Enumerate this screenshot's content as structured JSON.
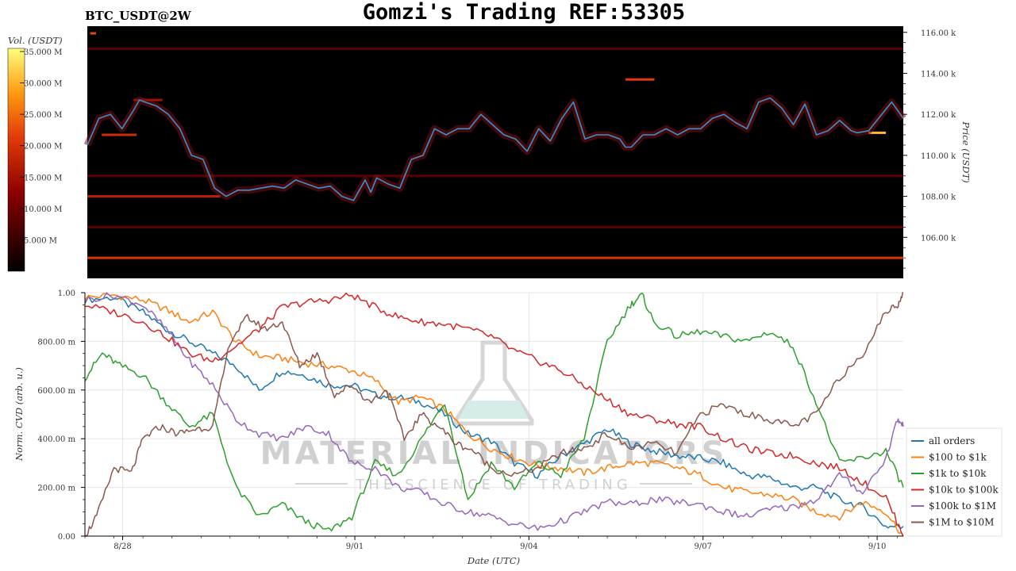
{
  "header": {
    "symbol": "BTC_USDT@2W",
    "title": "Gomzi's Trading REF:53305"
  },
  "watermark": {
    "line1": "MATERIAL INDICATORS",
    "line2": "THE SCIENCE OF TRADING"
  },
  "colors": {
    "heatmap_bg": "#000000",
    "price_line": "#3a8fd0",
    "grid": "#e6e6e6"
  },
  "chart_data": [
    {
      "type": "heatmap",
      "title": "",
      "ylabel": "Price (USDT)",
      "ylim": [
        104000,
        116300
      ],
      "y_ticks": [
        "106.00 k",
        "108.00 k",
        "110.00 k",
        "112.00 k",
        "114.00 k",
        "116.00 k"
      ],
      "y_tick_values": [
        106000,
        108000,
        110000,
        112000,
        114000,
        116000
      ],
      "colorbar": {
        "label": "Vol. (USDT)",
        "ticks": [
          "5.000 M",
          "10.000 M",
          "15.000 M",
          "20.000 M",
          "25.000 M",
          "30.000 M",
          "35.000 M"
        ],
        "tick_values": [
          5,
          10,
          15,
          20,
          25,
          30,
          35
        ],
        "range": [
          0,
          35.5
        ]
      },
      "x_range_days": [
        0,
        14.1
      ],
      "walls": [
        {
          "price": 105000,
          "x0": 0,
          "x1": 14.1,
          "vol": 20
        },
        {
          "price": 108000,
          "x0": 0,
          "x1": 2.3,
          "vol": 17
        },
        {
          "price": 111000,
          "x0": 0.25,
          "x1": 0.85,
          "vol": 19
        },
        {
          "price": 113700,
          "x0": 9.3,
          "x1": 9.8,
          "vol": 21
        },
        {
          "price": 111100,
          "x0": 13.5,
          "x1": 13.8,
          "vol": 30
        },
        {
          "price": 115950,
          "x0": 0.05,
          "x1": 0.15,
          "vol": 22
        },
        {
          "price": 109000,
          "x0": 0,
          "x1": 14.1,
          "vol": 8
        },
        {
          "price": 106500,
          "x0": 0,
          "x1": 14.1,
          "vol": 8
        },
        {
          "price": 115200,
          "x0": 0,
          "x1": 14.1,
          "vol": 8
        },
        {
          "price": 112700,
          "x0": 0.8,
          "x1": 1.3,
          "vol": 15
        }
      ],
      "series": [
        {
          "x": [
            0,
            0.2,
            0.4,
            0.6,
            0.8,
            0.9,
            1.0,
            1.2,
            1.4,
            1.6,
            1.8,
            2.0,
            2.2,
            2.4,
            2.6,
            2.8,
            3.0,
            3.2,
            3.4,
            3.6,
            3.8,
            4.0,
            4.2,
            4.4,
            4.6,
            4.8,
            4.9,
            5.0,
            5.2,
            5.4,
            5.6,
            5.8,
            6.0,
            6.2,
            6.4,
            6.6,
            6.8,
            7.0,
            7.2,
            7.4,
            7.6,
            7.8,
            8.0,
            8.2,
            8.4,
            8.6,
            8.8,
            9.0,
            9.2,
            9.3,
            9.4,
            9.6,
            9.8,
            10.0,
            10.2,
            10.4,
            10.6,
            10.8,
            11.0,
            11.2,
            11.4,
            11.6,
            11.8,
            12.0,
            12.2,
            12.4,
            12.6,
            12.8,
            13.0,
            13.2,
            13.3,
            13.5,
            13.7,
            13.9,
            14.0,
            14.1
          ],
          "values": [
            110500,
            111800,
            112000,
            111300,
            112200,
            112700,
            112600,
            112400,
            112000,
            111300,
            110000,
            109800,
            108400,
            108000,
            108300,
            108300,
            108400,
            108500,
            108400,
            108800,
            108600,
            108400,
            108500,
            108000,
            107800,
            108800,
            108200,
            108900,
            108600,
            108400,
            109800,
            110000,
            111300,
            111000,
            111300,
            111300,
            112000,
            111500,
            111000,
            110800,
            110200,
            111300,
            110700,
            111800,
            112600,
            110800,
            111000,
            111000,
            110800,
            110400,
            110400,
            111000,
            111000,
            111300,
            111000,
            111300,
            111300,
            111800,
            112000,
            111600,
            111300,
            112600,
            112800,
            112300,
            111500,
            112500,
            111000,
            111200,
            111700,
            111200,
            111100,
            111200,
            111900,
            112600,
            112200,
            111800
          ]
        }
      ]
    },
    {
      "type": "line",
      "title": "",
      "xlabel": "Date (UTC)",
      "ylabel": "Norm. CVD (arb. u.)",
      "ylim": [
        0,
        1
      ],
      "y_ticks": [
        "0.00",
        "200.00 m",
        "400.00 m",
        "600.00 m",
        "800.00 m",
        "1.00"
      ],
      "y_tick_values": [
        0,
        0.2,
        0.4,
        0.6,
        0.8,
        1.0
      ],
      "x_ticks": [
        "8/28",
        "9/01",
        "9/04",
        "9/07",
        "9/10"
      ],
      "x_tick_values": [
        0.65,
        4.65,
        7.65,
        10.65,
        13.65
      ],
      "x_range_days": [
        0,
        14.1
      ],
      "legend_position": "lower-right",
      "series": [
        {
          "name": "all orders",
          "color": "#1f77b4",
          "x": [
            0,
            0.5,
            1.0,
            1.4,
            1.8,
            2.2,
            2.6,
            3.0,
            3.4,
            3.8,
            4.2,
            4.6,
            5.0,
            5.4,
            5.8,
            6.2,
            6.6,
            7.0,
            7.4,
            7.8,
            8.2,
            8.6,
            9.0,
            9.4,
            9.8,
            10.2,
            10.6,
            11.0,
            11.4,
            11.8,
            12.2,
            12.6,
            13.0,
            13.4,
            13.8,
            14.1
          ],
          "values": [
            0.97,
            0.98,
            0.92,
            0.85,
            0.8,
            0.75,
            0.7,
            0.6,
            0.68,
            0.66,
            0.62,
            0.62,
            0.58,
            0.57,
            0.55,
            0.5,
            0.42,
            0.39,
            0.3,
            0.25,
            0.33,
            0.38,
            0.44,
            0.38,
            0.35,
            0.33,
            0.32,
            0.3,
            0.25,
            0.24,
            0.2,
            0.2,
            0.15,
            0.12,
            0.04,
            0.04
          ]
        },
        {
          "name": "$100 to $1k",
          "color": "#ff7f0e",
          "x": [
            0,
            0.5,
            1.0,
            1.4,
            1.8,
            2.2,
            2.6,
            3.0,
            3.4,
            3.8,
            4.2,
            4.6,
            5.0,
            5.4,
            5.8,
            6.2,
            6.6,
            7.0,
            7.4,
            7.8,
            8.2,
            8.6,
            9.0,
            9.4,
            9.8,
            10.2,
            10.6,
            11.0,
            11.4,
            11.8,
            12.2,
            12.6,
            13.0,
            13.4,
            13.8,
            14.1
          ],
          "values": [
            0.98,
            0.99,
            0.97,
            0.93,
            0.88,
            0.92,
            0.8,
            0.74,
            0.73,
            0.71,
            0.7,
            0.68,
            0.64,
            0.55,
            0.57,
            0.52,
            0.42,
            0.36,
            0.32,
            0.29,
            0.28,
            0.26,
            0.28,
            0.3,
            0.3,
            0.28,
            0.25,
            0.2,
            0.18,
            0.17,
            0.15,
            0.1,
            0.08,
            0.14,
            0.1,
            0.0
          ]
        },
        {
          "name": "$1k to $10k",
          "color": "#2ca02c",
          "x": [
            0,
            0.3,
            0.6,
            1.0,
            1.4,
            1.8,
            2.2,
            2.6,
            3.0,
            3.4,
            3.8,
            4.2,
            4.6,
            5.0,
            5.4,
            5.8,
            6.2,
            6.6,
            7.0,
            7.4,
            7.8,
            8.2,
            8.6,
            9.0,
            9.4,
            9.6,
            9.8,
            10.2,
            10.6,
            11.0,
            11.4,
            11.8,
            12.2,
            12.6,
            13.0,
            13.4,
            13.8,
            14.1
          ],
          "values": [
            0.65,
            0.75,
            0.7,
            0.66,
            0.55,
            0.45,
            0.5,
            0.2,
            0.08,
            0.13,
            0.06,
            0.02,
            0.08,
            0.3,
            0.25,
            0.4,
            0.55,
            0.15,
            0.3,
            0.2,
            0.3,
            0.25,
            0.4,
            0.8,
            0.95,
            0.99,
            0.88,
            0.82,
            0.84,
            0.82,
            0.8,
            0.84,
            0.78,
            0.55,
            0.3,
            0.32,
            0.35,
            0.2
          ]
        },
        {
          "name": "$10k to $100k",
          "color": "#d62728",
          "x": [
            0,
            0.5,
            1.0,
            1.4,
            1.8,
            2.2,
            2.6,
            3.0,
            3.4,
            3.8,
            4.2,
            4.6,
            5.0,
            5.4,
            5.8,
            6.2,
            6.6,
            7.0,
            7.4,
            7.8,
            8.2,
            8.6,
            9.0,
            9.4,
            9.8,
            10.2,
            10.6,
            11.0,
            11.4,
            11.8,
            12.2,
            12.6,
            13.0,
            13.4,
            13.8,
            14.1
          ],
          "values": [
            0.95,
            0.92,
            0.88,
            0.82,
            0.75,
            0.72,
            0.78,
            0.85,
            0.94,
            0.96,
            0.97,
            0.99,
            0.94,
            0.9,
            0.88,
            0.87,
            0.85,
            0.82,
            0.76,
            0.72,
            0.68,
            0.62,
            0.56,
            0.5,
            0.48,
            0.46,
            0.45,
            0.4,
            0.36,
            0.34,
            0.33,
            0.3,
            0.28,
            0.22,
            0.16,
            0.0
          ]
        },
        {
          "name": "$100k to $1M",
          "color": "#9467bd",
          "x": [
            0,
            0.5,
            1.0,
            1.4,
            1.8,
            2.2,
            2.6,
            3.0,
            3.4,
            3.8,
            4.2,
            4.6,
            5.0,
            5.4,
            5.8,
            6.2,
            6.6,
            7.0,
            7.4,
            7.8,
            8.2,
            8.6,
            9.0,
            9.4,
            9.8,
            10.2,
            10.6,
            11.0,
            11.4,
            11.8,
            12.2,
            12.6,
            13.0,
            13.4,
            13.8,
            14.0,
            14.1
          ],
          "values": [
            0.97,
            0.99,
            0.95,
            0.85,
            0.72,
            0.62,
            0.48,
            0.42,
            0.4,
            0.45,
            0.42,
            0.3,
            0.28,
            0.2,
            0.18,
            0.13,
            0.1,
            0.08,
            0.05,
            0.03,
            0.06,
            0.1,
            0.14,
            0.13,
            0.15,
            0.14,
            0.13,
            0.1,
            0.08,
            0.11,
            0.12,
            0.15,
            0.25,
            0.18,
            0.32,
            0.48,
            0.45
          ]
        },
        {
          "name": "$1M to $10M",
          "color": "#8c564b",
          "x": [
            0,
            0.2,
            0.5,
            0.8,
            1.0,
            1.3,
            1.6,
            1.9,
            2.2,
            2.5,
            2.8,
            3.1,
            3.4,
            3.7,
            4.0,
            4.3,
            4.6,
            4.9,
            5.2,
            5.5,
            5.8,
            6.1,
            6.4,
            6.7,
            7.0,
            7.4,
            7.8,
            8.2,
            8.6,
            9.0,
            9.4,
            9.8,
            10.2,
            10.6,
            11.0,
            11.4,
            11.8,
            12.2,
            12.6,
            13.0,
            13.4,
            13.8,
            14.0,
            14.1
          ],
          "values": [
            0.0,
            0.08,
            0.28,
            0.26,
            0.4,
            0.45,
            0.42,
            0.44,
            0.45,
            0.8,
            0.9,
            0.85,
            0.88,
            0.7,
            0.75,
            0.58,
            0.62,
            0.55,
            0.6,
            0.4,
            0.5,
            0.45,
            0.38,
            0.35,
            0.28,
            0.25,
            0.28,
            0.34,
            0.36,
            0.42,
            0.36,
            0.38,
            0.34,
            0.5,
            0.54,
            0.5,
            0.48,
            0.45,
            0.5,
            0.65,
            0.75,
            0.92,
            0.95,
            1.0
          ]
        }
      ]
    }
  ]
}
